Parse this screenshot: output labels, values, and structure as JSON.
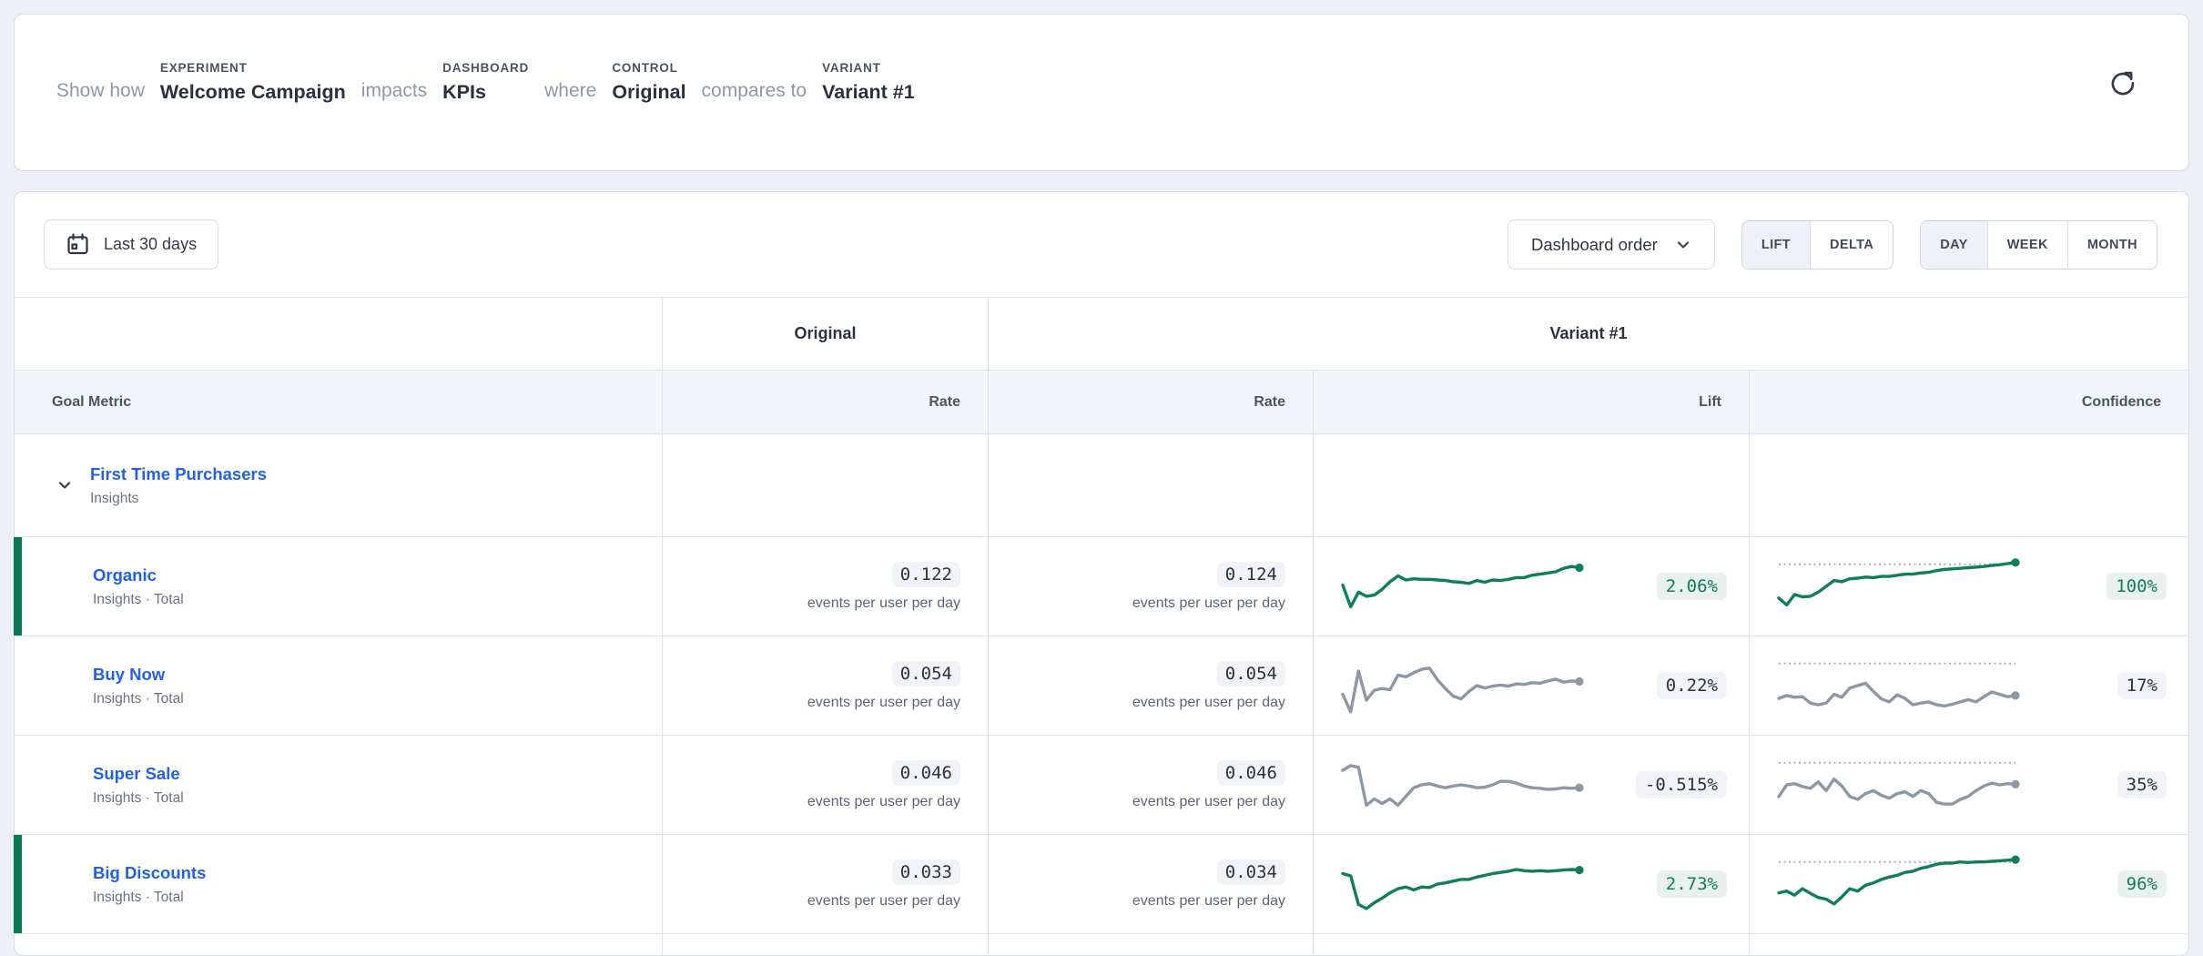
{
  "colors": {
    "positive_green": "#0e7e5f",
    "bar_green": "#0c7a56",
    "neutral_gray": "#8d98a5",
    "link_blue": "#2160ed",
    "badge_bg": "#f1f3f8",
    "badge_bg_positive": "#e9f1ed",
    "page_bg": "#edf0f5"
  },
  "header": {
    "prefix": "Show how",
    "experiment_label": "EXPERIMENT",
    "experiment_value": "Welcome Campaign",
    "impacts": "impacts",
    "dashboard_label": "DASHBOARD",
    "dashboard_value": "KPIs",
    "where": "where",
    "control_label": "CONTROL",
    "control_value": "Original",
    "compares": "compares to",
    "variant_label": "VARIANT",
    "variant_value": "Variant #1",
    "refresh_icon": "refresh-icon"
  },
  "toolbar": {
    "date_range": "Last 30 days",
    "calendar_icon": "calendar-icon",
    "order_label": "Dashboard order",
    "mode_options": [
      "LIFT",
      "DELTA"
    ],
    "mode_selected": "LIFT",
    "lift": "LIFT",
    "delta": "DELTA",
    "period_options": [
      "DAY",
      "WEEK",
      "MONTH"
    ],
    "period_selected": "DAY",
    "day": "DAY",
    "week": "WEEK",
    "month": "MONTH"
  },
  "table": {
    "group": {
      "original": "Original",
      "variant": "Variant #1"
    },
    "cols": {
      "goal": "Goal Metric",
      "rate_original": "Rate",
      "rate_variant": "Rate",
      "lift": "Lift",
      "confidence": "Confidence"
    }
  },
  "parent_row": {
    "name": "First Time Purchasers",
    "subtitle": "Insights"
  },
  "rows": [
    {
      "name": "Organic",
      "subtitle": "Insights · Total",
      "original_rate": "0.122",
      "variant_rate": "0.124",
      "unit": "events per user per day",
      "lift": "2.06%",
      "confidence": "100%",
      "tone": "positive",
      "threshold": 88,
      "lift_spark": [
        52,
        15,
        40,
        33,
        35,
        45,
        58,
        68,
        61,
        63,
        62,
        62,
        61,
        60,
        58,
        57,
        55,
        60,
        57,
        61,
        60,
        62,
        65,
        65,
        69,
        71,
        73,
        75,
        81,
        84,
        82
      ],
      "conf_spark": [
        30,
        18,
        36,
        32,
        33,
        40,
        50,
        60,
        58,
        63,
        64,
        66,
        65,
        67,
        67,
        69,
        71,
        71,
        73,
        74,
        77,
        79,
        80,
        81,
        82,
        83,
        84,
        86,
        87,
        89,
        91
      ]
    },
    {
      "name": "Buy Now",
      "subtitle": "Insights · Total",
      "original_rate": "0.054",
      "variant_rate": "0.054",
      "unit": "events per user per day",
      "lift": "0.22%",
      "confidence": "17%",
      "tone": "neutral",
      "threshold": 88,
      "lift_spark": [
        35,
        5,
        75,
        25,
        42,
        45,
        43,
        68,
        65,
        72,
        78,
        80,
        60,
        45,
        32,
        27,
        40,
        50,
        46,
        49,
        51,
        49,
        53,
        52,
        55,
        54,
        58,
        61,
        56,
        58,
        57
      ],
      "conf_spark": [
        28,
        33,
        30,
        31,
        20,
        17,
        20,
        35,
        30,
        46,
        50,
        54,
        40,
        27,
        22,
        34,
        28,
        17,
        20,
        22,
        17,
        15,
        18,
        22,
        26,
        22,
        31,
        39,
        35,
        31,
        33
      ]
    },
    {
      "name": "Super Sale",
      "subtitle": "Insights · Total",
      "original_rate": "0.046",
      "variant_rate": "0.046",
      "unit": "events per user per day",
      "lift": "-0.515%",
      "confidence": "35%",
      "tone": "neutral",
      "threshold": 88,
      "lift_spark": [
        75,
        83,
        80,
        15,
        26,
        18,
        26,
        15,
        30,
        45,
        50,
        52,
        48,
        45,
        48,
        50,
        48,
        45,
        46,
        50,
        56,
        56,
        53,
        48,
        45,
        44,
        42,
        43,
        45,
        44,
        45
      ],
      "conf_spark": [
        30,
        50,
        52,
        47,
        44,
        55,
        40,
        60,
        48,
        30,
        25,
        35,
        40,
        32,
        27,
        35,
        38,
        30,
        40,
        35,
        20,
        17,
        17,
        25,
        30,
        40,
        48,
        53,
        50,
        52,
        51
      ]
    },
    {
      "name": "Big Discounts",
      "subtitle": "Insights · Total",
      "original_rate": "0.033",
      "variant_rate": "0.034",
      "unit": "events per user per day",
      "lift": "2.73%",
      "confidence": "96%",
      "tone": "positive",
      "threshold": 88,
      "lift_spark": [
        68,
        64,
        15,
        8,
        18,
        26,
        35,
        42,
        45,
        40,
        45,
        44,
        50,
        52,
        55,
        58,
        58,
        62,
        65,
        68,
        70,
        72,
        75,
        73,
        72,
        73,
        72,
        73,
        74,
        75,
        74
      ],
      "conf_spark": [
        35,
        38,
        31,
        42,
        34,
        27,
        24,
        16,
        28,
        42,
        38,
        48,
        52,
        58,
        62,
        65,
        70,
        72,
        77,
        80,
        84,
        86,
        86,
        88,
        87,
        88,
        88,
        89,
        90,
        91,
        92
      ]
    }
  ]
}
